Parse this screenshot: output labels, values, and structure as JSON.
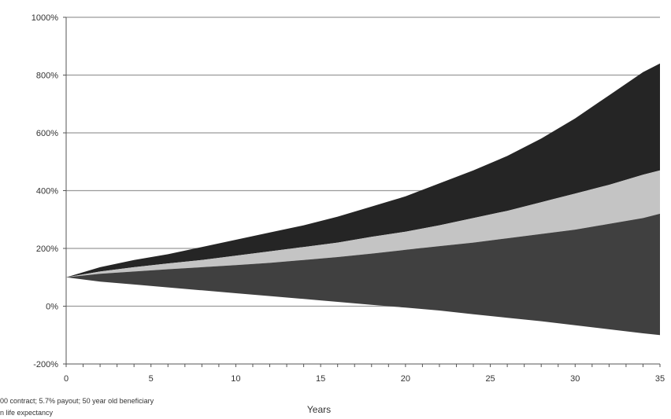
{
  "chart_data": {
    "type": "area",
    "xlabel": "Years",
    "ylabel": "",
    "title": "",
    "x": [
      0,
      2,
      4,
      6,
      8,
      10,
      12,
      14,
      16,
      18,
      20,
      22,
      24,
      26,
      28,
      30,
      32,
      34,
      35
    ],
    "ylim": [
      -200,
      1000
    ],
    "xlim": [
      0,
      35
    ],
    "yticks": [
      -200,
      0,
      200,
      400,
      600,
      800,
      1000
    ],
    "ytick_labels": [
      "-200%",
      "0%",
      "200%",
      "400%",
      "600%",
      "800%",
      "1000%"
    ],
    "xticks": [
      0,
      5,
      10,
      15,
      20,
      25,
      30,
      35
    ],
    "xtick_labels": [
      "0",
      "5",
      "10",
      "15",
      "20",
      "25",
      "30",
      "35"
    ],
    "grid": true,
    "series": [
      {
        "values": [
          100,
          135,
          160,
          180,
          205,
          230,
          255,
          280,
          310,
          345,
          380,
          425,
          470,
          520,
          580,
          650,
          730,
          810,
          840
        ]
      },
      {
        "values": [
          100,
          120,
          135,
          148,
          160,
          175,
          190,
          205,
          220,
          240,
          258,
          280,
          305,
          330,
          360,
          390,
          420,
          455,
          470
        ]
      },
      {
        "values": [
          100,
          112,
          120,
          128,
          135,
          142,
          150,
          160,
          170,
          182,
          195,
          208,
          220,
          235,
          250,
          265,
          285,
          305,
          320
        ]
      },
      {
        "values": [
          100,
          85,
          75,
          65,
          55,
          45,
          35,
          25,
          15,
          5,
          -5,
          -15,
          -28,
          -40,
          -52,
          -66,
          -80,
          -94,
          -100
        ]
      }
    ],
    "colors": [
      "#252525",
      "#c4c4c4",
      "#404040"
    ]
  },
  "footnote": {
    "line1": "00 contract; 5.7% payout; 50 year old beneficiary",
    "line2": "n life expectancy"
  }
}
